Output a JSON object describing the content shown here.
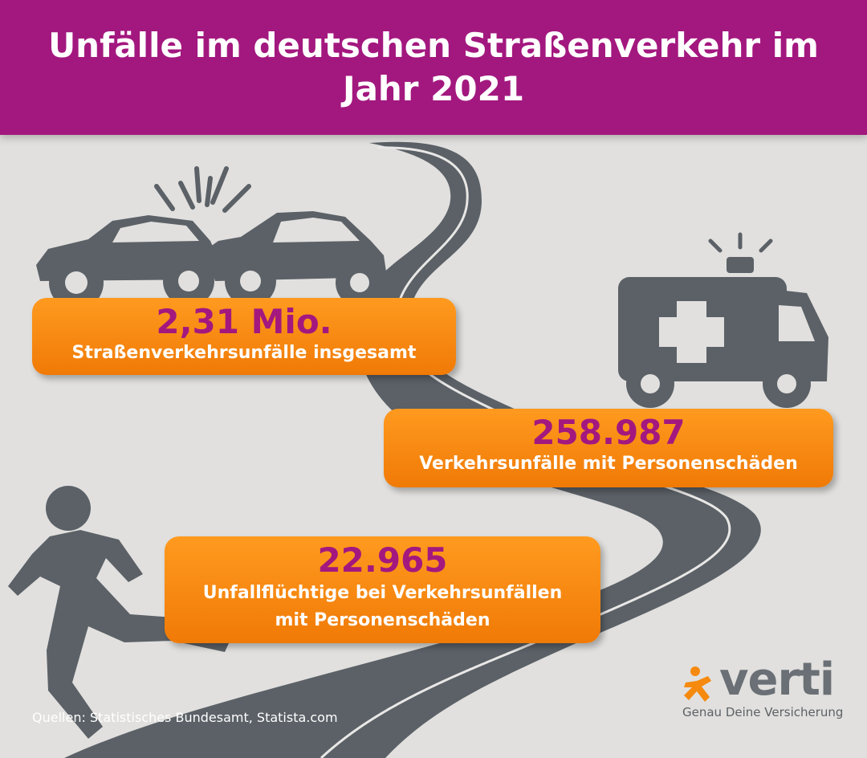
{
  "header": {
    "title": "Unfälle im deutschen Straßenverkehr im Jahr 2021"
  },
  "stats": [
    {
      "value": "2,31 Mio.",
      "label": "Straßenverkehrsunfälle insgesamt"
    },
    {
      "value": "258.987",
      "label": "Verkehrsunfälle mit Personenschäden"
    },
    {
      "value": "22.965",
      "label_line1": "Unfallflüchtige bei Verkehrsunfällen",
      "label_line2": "mit Personenschäden"
    }
  ],
  "source": "Quellen: Statistisches Bundesamt, Statista.com",
  "brand": {
    "name": "verti",
    "tagline": "Genau Deine Versicherung"
  },
  "colors": {
    "header_bg": "#a3187f",
    "box_orange": "#f58a0f",
    "number_purple": "#a3187f",
    "road_gray": "#5b6167",
    "background": "#e1e0de"
  },
  "icons": [
    "crashed-cars-icon",
    "ambulance-icon",
    "running-person-icon",
    "verti-logo-icon"
  ]
}
